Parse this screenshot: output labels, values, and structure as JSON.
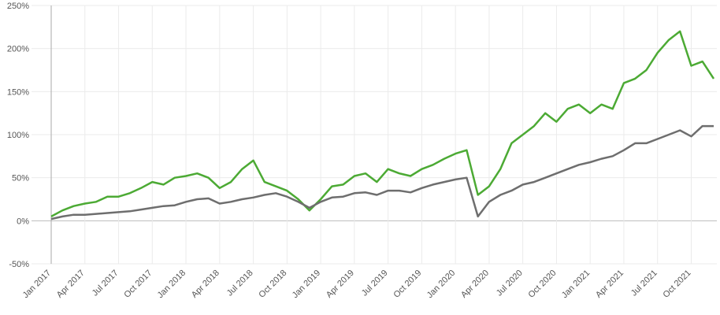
{
  "chart_data": {
    "type": "line",
    "categories": [
      "Jan 2017",
      null,
      null,
      "Apr 2017",
      null,
      null,
      "Jul 2017",
      null,
      null,
      "Oct 2017",
      null,
      null,
      "Jan 2018",
      null,
      null,
      "Apr 2018",
      null,
      null,
      "Jul 2018",
      null,
      null,
      "Oct 2018",
      null,
      null,
      "Jan 2019",
      null,
      null,
      "Apr 2019",
      null,
      null,
      "Jul 2019",
      null,
      null,
      "Oct 2019",
      null,
      null,
      "Jan 2020",
      null,
      null,
      "Apr 2020",
      null,
      null,
      "Jul 2020",
      null,
      null,
      "Oct 2020",
      null,
      null,
      "Jan 2021",
      null,
      null,
      "Apr 2021",
      null,
      null,
      "Jul 2021",
      null,
      null,
      "Oct 2021",
      null,
      null
    ],
    "series": [
      {
        "color": "#4caa34",
        "values": [
          5,
          12,
          17,
          20,
          22,
          28,
          28,
          32,
          38,
          45,
          42,
          50,
          52,
          55,
          50,
          38,
          45,
          60,
          70,
          45,
          40,
          35,
          25,
          12,
          25,
          40,
          42,
          52,
          55,
          45,
          60,
          55,
          52,
          60,
          65,
          72,
          78,
          82,
          30,
          40,
          60,
          90,
          100,
          110,
          125,
          115,
          130,
          135,
          125,
          135,
          130,
          160,
          165,
          175,
          195,
          210,
          220,
          180,
          185,
          165
        ]
      },
      {
        "color": "#6e6e6e",
        "values": [
          2,
          5,
          7,
          7,
          8,
          9,
          10,
          11,
          13,
          15,
          17,
          18,
          22,
          25,
          26,
          20,
          22,
          25,
          27,
          30,
          32,
          28,
          22,
          15,
          22,
          27,
          28,
          32,
          33,
          30,
          35,
          35,
          33,
          38,
          42,
          45,
          48,
          50,
          5,
          22,
          30,
          35,
          42,
          45,
          50,
          55,
          60,
          65,
          68,
          72,
          75,
          82,
          90,
          90,
          95,
          100,
          105,
          98,
          110,
          110
        ]
      }
    ],
    "ylim": [
      -50,
      250
    ],
    "yticks": [
      {
        "value": -50,
        "label": "-50%"
      },
      {
        "value": 0,
        "label": "0%"
      },
      {
        "value": 50,
        "label": "50%"
      },
      {
        "value": 100,
        "label": "100%"
      },
      {
        "value": 150,
        "label": "150%"
      },
      {
        "value": 200,
        "label": "200%"
      },
      {
        "value": 250,
        "label": "250%"
      }
    ],
    "grid": true
  }
}
